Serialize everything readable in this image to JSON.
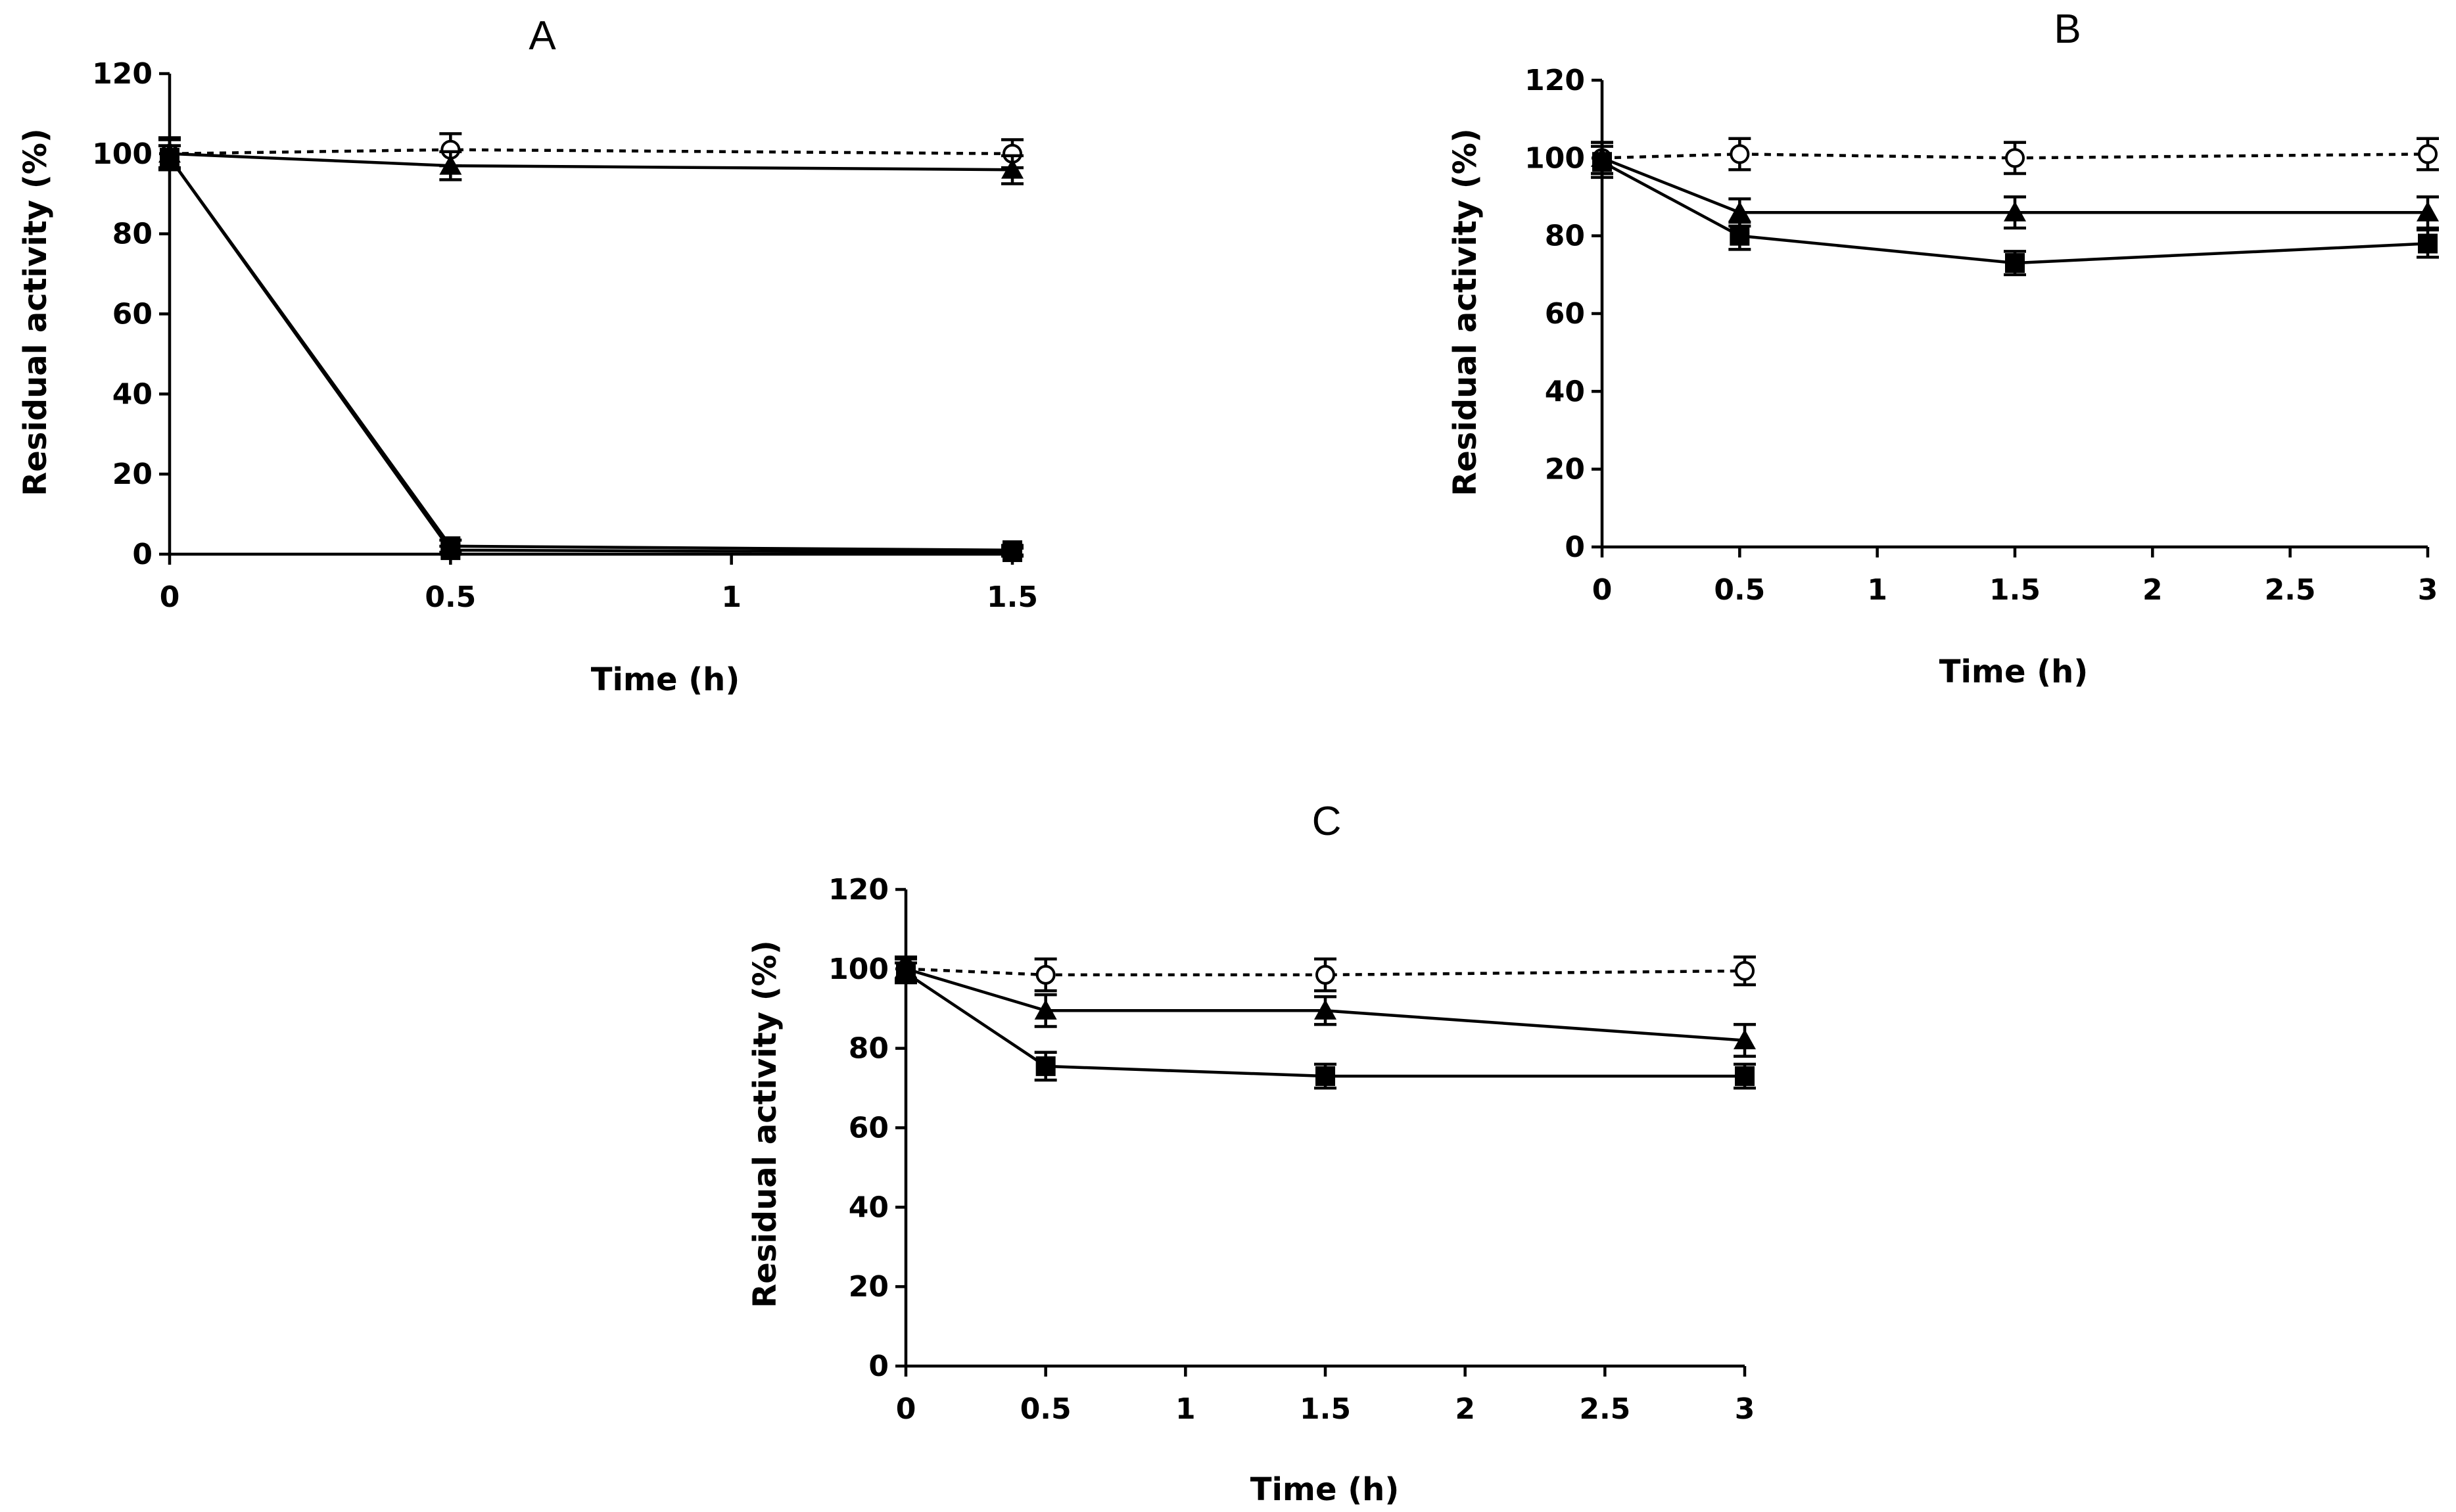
{
  "chart_data": [
    {
      "type": "line",
      "title": "A",
      "xlabel": "Time (h)",
      "ylabel": "Residual activity (%)",
      "xlim": [
        0,
        1.5
      ],
      "ylim": [
        0,
        120
      ],
      "xticks": [
        0,
        0.5,
        1,
        1.5
      ],
      "xtick_labels": [
        "0",
        "0.5",
        "1",
        "1.5"
      ],
      "yticks": [
        0,
        20,
        40,
        60,
        80,
        100,
        120
      ],
      "ytick_labels": [
        "0",
        "20",
        "40",
        "60",
        "80",
        "100",
        "120"
      ],
      "grid": false,
      "legend": "none",
      "series": [
        {
          "name": "open circles (dotted)",
          "marker": "circle-open",
          "linestyle": "dotted",
          "x": [
            0,
            0.5,
            1.5
          ],
          "y": [
            100,
            101,
            100
          ],
          "err": [
            4,
            4,
            3.5
          ]
        },
        {
          "name": "filled triangles",
          "marker": "triangle",
          "linestyle": "solid",
          "x": [
            0,
            0.5,
            1.5
          ],
          "y": [
            100,
            97,
            96
          ],
          "err": [
            3.5,
            3.5,
            3.5
          ]
        },
        {
          "name": "filled squares",
          "marker": "square",
          "linestyle": "solid",
          "x": [
            0,
            0.5,
            1.5
          ],
          "y": [
            99,
            2,
            1
          ],
          "err": [
            3,
            1.5,
            1.2
          ]
        },
        {
          "name": "filled squares (second)",
          "marker": "square",
          "linestyle": "solid",
          "x": [
            0,
            0.5,
            1.5
          ],
          "y": [
            99,
            1,
            0.5
          ],
          "err": [
            3,
            1,
            1
          ]
        }
      ]
    },
    {
      "type": "line",
      "title": "B",
      "xlabel": "Time (h)",
      "ylabel": "Residual activity (%)",
      "xlim": [
        0,
        3
      ],
      "ylim": [
        0,
        120
      ],
      "xticks": [
        0,
        0.5,
        1,
        1.5,
        2,
        2.5,
        3
      ],
      "xtick_labels": [
        "0",
        "0.5",
        "1",
        "1.5",
        "2",
        "2.5",
        "3"
      ],
      "yticks": [
        0,
        20,
        40,
        60,
        80,
        100,
        120
      ],
      "ytick_labels": [
        "0",
        "20",
        "40",
        "60",
        "80",
        "100",
        "120"
      ],
      "grid": false,
      "legend": "none",
      "series": [
        {
          "name": "open circles (dotted)",
          "marker": "circle-open",
          "linestyle": "dotted",
          "x": [
            0,
            0.5,
            1.5,
            3
          ],
          "y": [
            100,
            101,
            100,
            101
          ],
          "err": [
            4,
            4,
            4,
            4
          ]
        },
        {
          "name": "filled triangles",
          "marker": "triangle",
          "linestyle": "solid",
          "x": [
            0,
            0.5,
            1.5,
            3
          ],
          "y": [
            100,
            86,
            86,
            86
          ],
          "err": [
            4,
            3.5,
            4,
            4
          ]
        },
        {
          "name": "filled squares",
          "marker": "square",
          "linestyle": "solid",
          "x": [
            0,
            0.5,
            1.5,
            3
          ],
          "y": [
            99,
            80,
            73,
            78
          ],
          "err": [
            4,
            3.5,
            3,
            3.5
          ]
        }
      ]
    },
    {
      "type": "line",
      "title": "C",
      "xlabel": "Time (h)",
      "ylabel": "Residual activity (%)",
      "xlim": [
        0,
        3
      ],
      "ylim": [
        0,
        120
      ],
      "xticks": [
        0,
        0.5,
        1,
        1.5,
        2,
        2.5,
        3
      ],
      "xtick_labels": [
        "0",
        "0.5",
        "1",
        "1.5",
        "2",
        "2.5",
        "3"
      ],
      "yticks": [
        0,
        20,
        40,
        60,
        80,
        100,
        120
      ],
      "ytick_labels": [
        "0",
        "20",
        "40",
        "60",
        "80",
        "100",
        "120"
      ],
      "grid": false,
      "legend": "none",
      "series": [
        {
          "name": "open circles (dotted)",
          "marker": "circle-open",
          "linestyle": "dotted",
          "x": [
            0,
            0.5,
            1.5,
            3
          ],
          "y": [
            100,
            98.5,
            98.5,
            99.5
          ],
          "err": [
            3,
            4,
            4,
            3.5
          ]
        },
        {
          "name": "filled triangles",
          "marker": "triangle",
          "linestyle": "solid",
          "x": [
            0,
            0.5,
            1.5,
            3
          ],
          "y": [
            100,
            89.5,
            89.5,
            82
          ],
          "err": [
            2.5,
            4,
            3.5,
            4
          ]
        },
        {
          "name": "filled squares",
          "marker": "square",
          "linestyle": "solid",
          "x": [
            0,
            0.5,
            1.5,
            3
          ],
          "y": [
            99,
            75.5,
            73,
            73
          ],
          "err": [
            2.5,
            3.5,
            3,
            3
          ]
        }
      ]
    }
  ]
}
